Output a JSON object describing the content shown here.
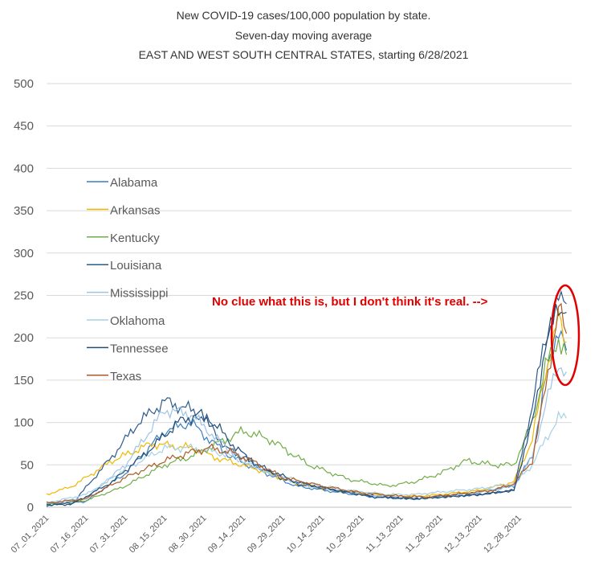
{
  "chart_data": {
    "type": "line",
    "title_lines": [
      "New COVID-19 cases/100,000 population by state.",
      "Seven-day moving average",
      "EAST AND WEST SOUTH CENTRAL STATES, starting 6/28/2021"
    ],
    "xlabel": "",
    "ylabel": "",
    "ylim": [
      0,
      500
    ],
    "yticks": [
      "0",
      "50",
      "100",
      "150",
      "200",
      "250",
      "300",
      "350",
      "400",
      "450",
      "500"
    ],
    "xticks": [
      "07_01_2021",
      "07_16_2021",
      "07_31_2021",
      "08_15_2021",
      "08_30_2021",
      "09_14_2021",
      "09_29_2021",
      "10_14_2021",
      "10_29_2021",
      "11_13_2021",
      "11_28_2021",
      "12_13_2021",
      "12_28_2021"
    ],
    "grid": "horizontal",
    "legend_position": "left-inside",
    "annotation": {
      "text": "No clue what this is, but I don't think it's real. -->",
      "color": "#e00000"
    },
    "series": [
      {
        "name": "Alabama",
        "color": "#3a7fc0",
        "values": [
          [
            0,
            4
          ],
          [
            15,
            7
          ],
          [
            30,
            40
          ],
          [
            45,
            90
          ],
          [
            55,
            100
          ],
          [
            60,
            85
          ],
          [
            70,
            60
          ],
          [
            80,
            45
          ],
          [
            95,
            25
          ],
          [
            110,
            18
          ],
          [
            125,
            12
          ],
          [
            140,
            10
          ],
          [
            150,
            13
          ],
          [
            165,
            18
          ],
          [
            178,
            25
          ],
          [
            185,
            60
          ],
          [
            190,
            150
          ],
          [
            195,
            215
          ],
          [
            198,
            185
          ]
        ]
      },
      {
        "name": "Arkansas",
        "color": "#f0b800",
        "values": [
          [
            0,
            15
          ],
          [
            10,
            25
          ],
          [
            25,
            55
          ],
          [
            40,
            75
          ],
          [
            55,
            70
          ],
          [
            65,
            58
          ],
          [
            80,
            45
          ],
          [
            95,
            28
          ],
          [
            110,
            20
          ],
          [
            125,
            15
          ],
          [
            140,
            13
          ],
          [
            150,
            15
          ],
          [
            165,
            20
          ],
          [
            178,
            30
          ],
          [
            185,
            80
          ],
          [
            190,
            160
          ],
          [
            195,
            222
          ],
          [
            198,
            195
          ]
        ]
      },
      {
        "name": "Kentucky",
        "color": "#70ad47",
        "values": [
          [
            0,
            3
          ],
          [
            15,
            8
          ],
          [
            30,
            25
          ],
          [
            45,
            50
          ],
          [
            55,
            60
          ],
          [
            65,
            75
          ],
          [
            75,
            90
          ],
          [
            85,
            80
          ],
          [
            100,
            50
          ],
          [
            115,
            33
          ],
          [
            130,
            25
          ],
          [
            140,
            30
          ],
          [
            150,
            40
          ],
          [
            160,
            55
          ],
          [
            170,
            50
          ],
          [
            178,
            50
          ],
          [
            185,
            100
          ],
          [
            190,
            165
          ],
          [
            195,
            200
          ],
          [
            198,
            180
          ]
        ]
      },
      {
        "name": "Louisiana",
        "color": "#2e5a8a",
        "values": [
          [
            0,
            3
          ],
          [
            10,
            5
          ],
          [
            25,
            60
          ],
          [
            35,
            100
          ],
          [
            45,
            125
          ],
          [
            55,
            115
          ],
          [
            62,
            100
          ],
          [
            68,
            70
          ],
          [
            75,
            60
          ],
          [
            85,
            40
          ],
          [
            95,
            28
          ],
          [
            110,
            20
          ],
          [
            125,
            13
          ],
          [
            140,
            10
          ],
          [
            150,
            12
          ],
          [
            165,
            15
          ],
          [
            178,
            20
          ],
          [
            185,
            120
          ],
          [
            190,
            200
          ],
          [
            195,
            243
          ],
          [
            198,
            240
          ]
        ]
      },
      {
        "name": "Mississippi",
        "color": "#9dc3e6",
        "values": [
          [
            0,
            5
          ],
          [
            15,
            10
          ],
          [
            30,
            50
          ],
          [
            45,
            115
          ],
          [
            55,
            110
          ],
          [
            65,
            80
          ],
          [
            75,
            55
          ],
          [
            85,
            40
          ],
          [
            100,
            25
          ],
          [
            115,
            18
          ],
          [
            130,
            12
          ],
          [
            140,
            10
          ],
          [
            150,
            12
          ],
          [
            165,
            18
          ],
          [
            178,
            25
          ],
          [
            185,
            60
          ],
          [
            190,
            120
          ],
          [
            195,
            170
          ],
          [
            198,
            160
          ]
        ]
      },
      {
        "name": "Oklahoma",
        "color": "#a8d0e6",
        "values": [
          [
            0,
            5
          ],
          [
            15,
            15
          ],
          [
            30,
            45
          ],
          [
            45,
            70
          ],
          [
            55,
            70
          ],
          [
            65,
            65
          ],
          [
            75,
            55
          ],
          [
            85,
            40
          ],
          [
            100,
            28
          ],
          [
            115,
            20
          ],
          [
            130,
            15
          ],
          [
            140,
            15
          ],
          [
            150,
            18
          ],
          [
            165,
            22
          ],
          [
            178,
            28
          ],
          [
            185,
            50
          ],
          [
            190,
            80
          ],
          [
            195,
            105
          ],
          [
            198,
            105
          ]
        ]
      },
      {
        "name": "Tennessee",
        "color": "#1f4e79",
        "values": [
          [
            0,
            2
          ],
          [
            10,
            4
          ],
          [
            25,
            30
          ],
          [
            40,
            70
          ],
          [
            50,
            100
          ],
          [
            58,
            110
          ],
          [
            65,
            95
          ],
          [
            72,
            70
          ],
          [
            80,
            50
          ],
          [
            95,
            30
          ],
          [
            110,
            20
          ],
          [
            125,
            12
          ],
          [
            140,
            10
          ],
          [
            150,
            12
          ],
          [
            165,
            15
          ],
          [
            178,
            20
          ],
          [
            185,
            100
          ],
          [
            190,
            190
          ],
          [
            195,
            240
          ],
          [
            198,
            230
          ]
        ]
      },
      {
        "name": "Texas",
        "color": "#b05a22",
        "values": [
          [
            0,
            5
          ],
          [
            15,
            10
          ],
          [
            30,
            35
          ],
          [
            45,
            55
          ],
          [
            55,
            65
          ],
          [
            62,
            70
          ],
          [
            70,
            65
          ],
          [
            78,
            55
          ],
          [
            90,
            35
          ],
          [
            105,
            25
          ],
          [
            120,
            17
          ],
          [
            135,
            13
          ],
          [
            145,
            12
          ],
          [
            155,
            15
          ],
          [
            170,
            20
          ],
          [
            178,
            28
          ],
          [
            185,
            55
          ],
          [
            190,
            140
          ],
          [
            195,
            235
          ],
          [
            198,
            205
          ]
        ]
      }
    ],
    "x_range": [
      0,
      200
    ]
  }
}
